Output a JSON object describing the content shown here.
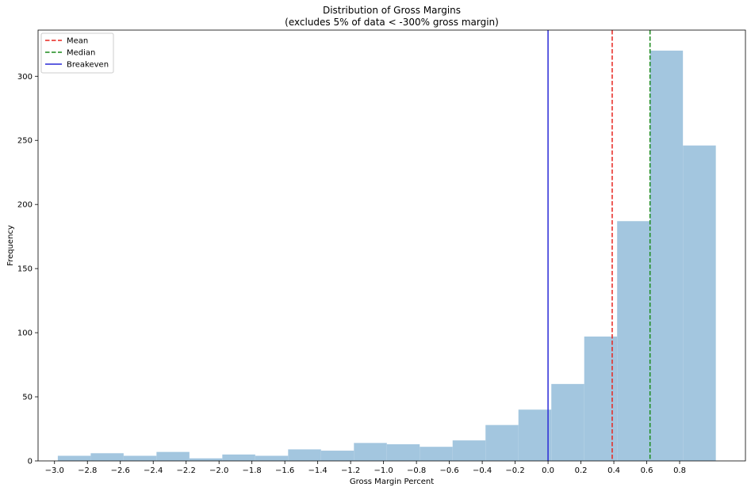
{
  "chart_data": {
    "type": "bar",
    "title": "Distribution of Gross Margins",
    "subtitle": "(excludes 5% of data < -300% gross margin)",
    "xlabel": "Gross Margin Percent",
    "ylabel": "Frequency",
    "xlim": [
      -3.1,
      1.2
    ],
    "ylim": [
      0,
      336
    ],
    "xticks": [
      -3.0,
      -2.8,
      -2.6,
      -2.4,
      -2.2,
      -2.0,
      -1.8,
      -1.6,
      -1.4,
      -1.2,
      -1.0,
      -0.8,
      -0.6,
      -0.4,
      -0.2,
      0.0,
      0.2,
      0.4,
      0.6,
      0.8
    ],
    "xtick_labels": [
      "−3.0",
      "−2.8",
      "−2.6",
      "−2.4",
      "−2.2",
      "−2.0",
      "−1.8",
      "−1.6",
      "−1.4",
      "−1.2",
      "−1.0",
      "−0.8",
      "−0.6",
      "−0.4",
      "−0.2",
      "0.0",
      "0.2",
      "0.4",
      "0.6",
      "0.8"
    ],
    "yticks": [
      0,
      50,
      100,
      150,
      200,
      250,
      300
    ],
    "ytick_labels": [
      "0",
      "50",
      "100",
      "150",
      "200",
      "250",
      "300"
    ],
    "bins": [
      {
        "x0": -2.98,
        "x1": -2.78,
        "value": 4
      },
      {
        "x0": -2.78,
        "x1": -2.58,
        "value": 6
      },
      {
        "x0": -2.58,
        "x1": -2.38,
        "value": 4
      },
      {
        "x0": -2.38,
        "x1": -2.18,
        "value": 7
      },
      {
        "x0": -2.18,
        "x1": -1.98,
        "value": 2
      },
      {
        "x0": -1.98,
        "x1": -1.78,
        "value": 5
      },
      {
        "x0": -1.78,
        "x1": -1.58,
        "value": 4
      },
      {
        "x0": -1.58,
        "x1": -1.38,
        "value": 9
      },
      {
        "x0": -1.38,
        "x1": -1.18,
        "value": 8
      },
      {
        "x0": -1.18,
        "x1": -0.98,
        "value": 14
      },
      {
        "x0": -0.98,
        "x1": -0.78,
        "value": 13
      },
      {
        "x0": -0.78,
        "x1": -0.58,
        "value": 11
      },
      {
        "x0": -0.58,
        "x1": -0.38,
        "value": 16
      },
      {
        "x0": -0.38,
        "x1": -0.18,
        "value": 28
      },
      {
        "x0": -0.18,
        "x1": 0.02,
        "value": 40
      },
      {
        "x0": 0.02,
        "x1": 0.22,
        "value": 60
      },
      {
        "x0": 0.22,
        "x1": 0.42,
        "value": 97
      },
      {
        "x0": 0.42,
        "x1": 0.62,
        "value": 187
      },
      {
        "x0": 0.62,
        "x1": 0.82,
        "value": 320
      },
      {
        "x0": 0.82,
        "x1": 1.02,
        "value": 246
      }
    ],
    "bar_color": "#a3c6df",
    "vlines": [
      {
        "name": "Mean",
        "x": 0.39,
        "color": "#e8251f",
        "style": "dashed"
      },
      {
        "name": "Median",
        "x": 0.62,
        "color": "#1a8a1a",
        "style": "dashed"
      },
      {
        "name": "Breakeven",
        "x": 0.0,
        "color": "#2a2ad6",
        "style": "solid"
      }
    ],
    "legend_position": "top-left",
    "grid": false
  }
}
